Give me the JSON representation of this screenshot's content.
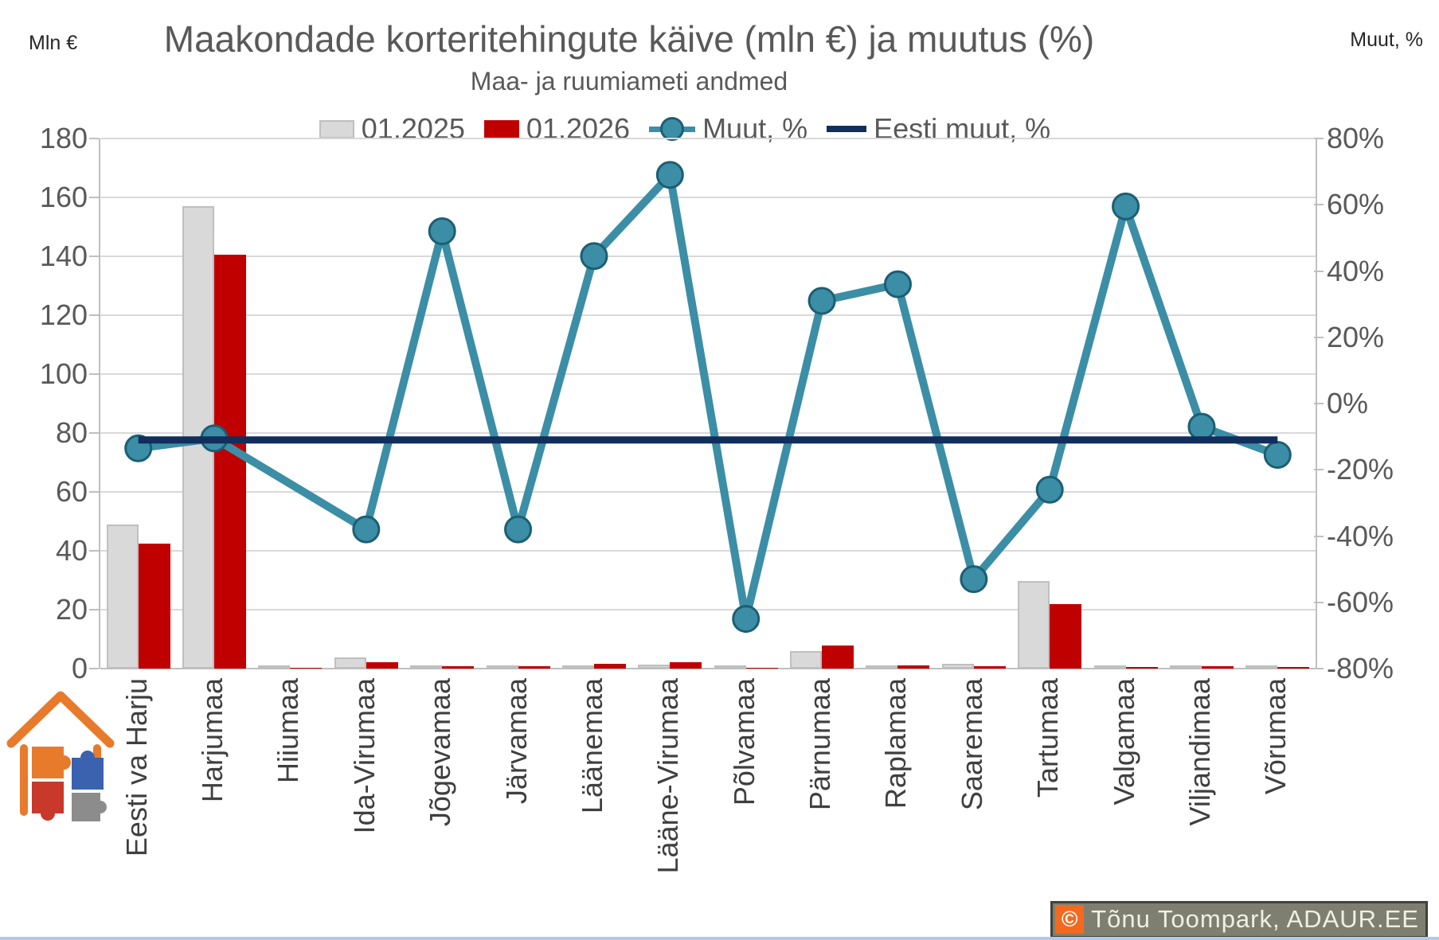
{
  "header": {
    "title": "Maakondade korteritehingute käive (mln €) ja muutus (%)",
    "subtitle": "Maa- ja ruumiameti andmed",
    "left_axis_unit": "Mln €",
    "right_axis_unit": "Muut, %"
  },
  "legend": [
    {
      "label": "01.2025",
      "type": "bar",
      "color": "#D9D9D9",
      "border": "#BFBFBF"
    },
    {
      "label": "01.2026",
      "type": "bar",
      "color": "#C00000",
      "border": "#C00000"
    },
    {
      "label": "Muut, %",
      "type": "line-marker",
      "color": "#3B8EA5",
      "stroke": "#1C5E74"
    },
    {
      "label": "Eesti muut, %",
      "type": "line",
      "color": "#112E5C"
    }
  ],
  "chart_data": {
    "type": "bar+line",
    "title": "Maakondade korteritehingute käive (mln €) ja muutus (%)",
    "subtitle": "Maa- ja ruumiameti andmed",
    "grid": true,
    "legend_position": "top",
    "categories": [
      "Eesti va Harju",
      "Harjumaa",
      "Hiiumaa",
      "Ida-Virumaa",
      "Jõgevamaa",
      "Järvamaa",
      "Läänemaa",
      "Lääne-Virumaa",
      "Põlvamaa",
      "Pärnumaa",
      "Raplamaa",
      "Saaremaa",
      "Tartumaa",
      "Valgamaa",
      "Viljandimaa",
      "Võrumaa"
    ],
    "left_axis": {
      "title": "Mln €",
      "min": 0,
      "max": 180,
      "step": 20
    },
    "right_axis": {
      "title": "Muut, %",
      "min": -80,
      "max": 80,
      "step": 20,
      "format": "percent"
    },
    "series": [
      {
        "name": "01.2025",
        "type": "bar",
        "axis": "left",
        "color": "#D9D9D9",
        "border": "#BFBFBF",
        "values": [
          49.0,
          157.0,
          0.2,
          3.7,
          0.45,
          1.2,
          1.05,
          1.3,
          0.5,
          6.0,
          0.75,
          1.5,
          29.7,
          0.4,
          1.0,
          0.7
        ]
      },
      {
        "name": "01.2026",
        "type": "bar",
        "axis": "left",
        "color": "#C00000",
        "border": "#C00000",
        "values": [
          42.4,
          140.5,
          0.2,
          2.3,
          0.7,
          0.75,
          1.5,
          2.2,
          0.18,
          7.9,
          1.0,
          0.7,
          21.8,
          0.64,
          0.93,
          0.59
        ]
      },
      {
        "name": "Muut, %",
        "type": "line",
        "axis": "right",
        "color": "#3B8EA5",
        "marker_stroke": "#1C5E74",
        "values": [
          -13.5,
          -10.5,
          null,
          -38,
          52,
          -38,
          44.5,
          69,
          -65,
          31,
          36,
          -53,
          -26,
          59.5,
          -7,
          -15.5
        ]
      },
      {
        "name": "Eesti muut, %",
        "type": "line-constant",
        "axis": "right",
        "color": "#112E5C",
        "constant": -11
      }
    ]
  },
  "logo": {
    "name": "adaur-house-puzzle-logo",
    "house_color": "#E87A2B",
    "pieces": {
      "orange": "#E87A2B",
      "blue": "#3A62AE",
      "red": "#C8382B",
      "gray": "#8C8C8C"
    }
  },
  "footer": {
    "watermark": {
      "copyright": "©",
      "text": "Tõnu Toompark, ADAUR.EE",
      "badge_bg": "#7F7F71",
      "badge_border": "#42423A",
      "text_color": "#F0EFE3",
      "copyright_bg": "#F4691E"
    },
    "bottom_strip_color": "#AECBEA"
  }
}
